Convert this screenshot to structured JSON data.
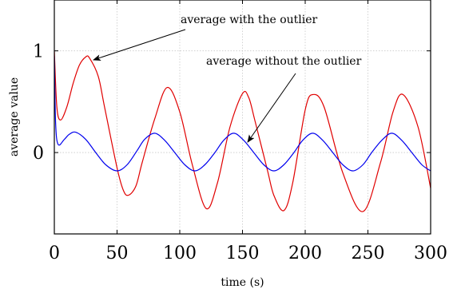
{
  "chart_data": {
    "type": "line",
    "title": "",
    "xlabel": "time (s)",
    "ylabel": "average value",
    "xlim": [
      0,
      300
    ],
    "ylim": [
      -0.8,
      1.5
    ],
    "xticks": [
      0,
      50,
      100,
      150,
      200,
      250,
      300
    ],
    "yticks": [
      0,
      1
    ],
    "grid": true,
    "series": [
      {
        "color": "#e00000",
        "x": [
          0,
          2,
          5,
          10,
          15,
          20,
          25,
          28,
          35,
          40,
          50,
          55,
          59,
          65,
          70,
          80,
          90,
          100,
          110,
          121,
          130,
          140,
          150,
          155,
          160,
          170,
          175,
          183,
          190,
          200,
          206,
          215,
          230,
          246,
          260,
          270,
          278,
          290,
          300
        ],
        "y": [
          1.0,
          0.45,
          0.32,
          0.45,
          0.68,
          0.86,
          0.94,
          0.93,
          0.75,
          0.45,
          -0.15,
          -0.37,
          -0.42,
          -0.33,
          -0.1,
          0.33,
          0.64,
          0.4,
          -0.12,
          -0.55,
          -0.3,
          0.25,
          0.58,
          0.54,
          0.31,
          -0.18,
          -0.42,
          -0.57,
          -0.3,
          0.42,
          0.57,
          0.45,
          -0.2,
          -0.58,
          -0.1,
          0.4,
          0.57,
          0.25,
          -0.35
        ]
      },
      {
        "color": "#0000ee",
        "x": [
          0,
          1,
          3,
          8,
          12,
          17,
          25,
          33,
          41,
          50,
          58,
          66,
          72,
          80,
          88,
          96,
          104,
          112,
          120,
          128,
          135,
          143,
          151,
          159,
          167,
          175,
          183,
          191,
          198,
          206,
          214,
          222,
          230,
          238,
          246,
          253,
          261,
          269,
          277,
          285,
          293,
          300
        ],
        "y": [
          0.95,
          0.3,
          0.08,
          0.13,
          0.18,
          0.2,
          0.13,
          0.0,
          -0.12,
          -0.18,
          -0.12,
          0.02,
          0.13,
          0.19,
          0.12,
          0.0,
          -0.12,
          -0.18,
          -0.12,
          0.0,
          0.12,
          0.19,
          0.12,
          0.0,
          -0.12,
          -0.18,
          -0.12,
          0.0,
          0.12,
          0.19,
          0.12,
          0.0,
          -0.12,
          -0.18,
          -0.12,
          0.0,
          0.12,
          0.19,
          0.12,
          0.0,
          -0.12,
          -0.18
        ]
      }
    ],
    "annotations": [
      {
        "text": "average with the outlier",
        "series": 0,
        "x": 28,
        "y": 0.93
      },
      {
        "text": "average without the outlier",
        "series": 1,
        "x": 153,
        "y": 0.12
      }
    ]
  }
}
